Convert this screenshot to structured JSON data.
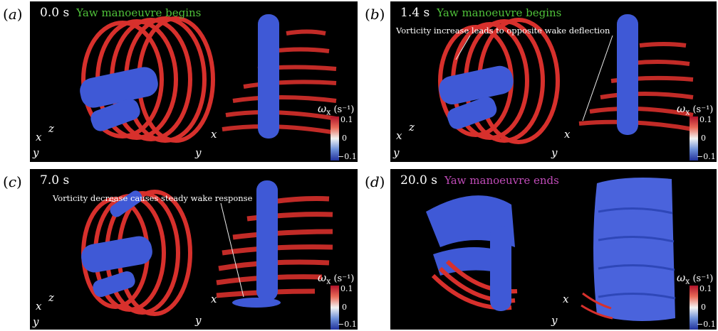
{
  "panels": [
    {
      "tag": "a",
      "time": "0.0 s",
      "status": "Yaw manoeuvre begins",
      "status_color": "#4fc23a",
      "note": ""
    },
    {
      "tag": "b",
      "time": "1.4 s",
      "status": "Yaw manoeuvre begins",
      "status_color": "#4fc23a",
      "note": "Vorticity increase leads to opposite wake deflection"
    },
    {
      "tag": "c",
      "time": "7.0 s",
      "status": "",
      "status_color": "#ffffff",
      "note": "Vorticity decrease causes steady wake response"
    },
    {
      "tag": "d",
      "time": "20.0 s",
      "status": "Yaw manoeuvre ends",
      "status_color": "#c04bb8",
      "note": ""
    }
  ],
  "colorbar": {
    "symbol": "ω",
    "subscript": "x",
    "unit": "(s⁻¹)",
    "ticks": [
      "0.1",
      "0",
      "−0.1"
    ]
  },
  "axes_labels": {
    "x": "x",
    "y": "y",
    "z": "z"
  },
  "colors": {
    "positive_vorticity": "#d7302c",
    "negative_vorticity": "#3f59d6",
    "background": "#000000"
  }
}
